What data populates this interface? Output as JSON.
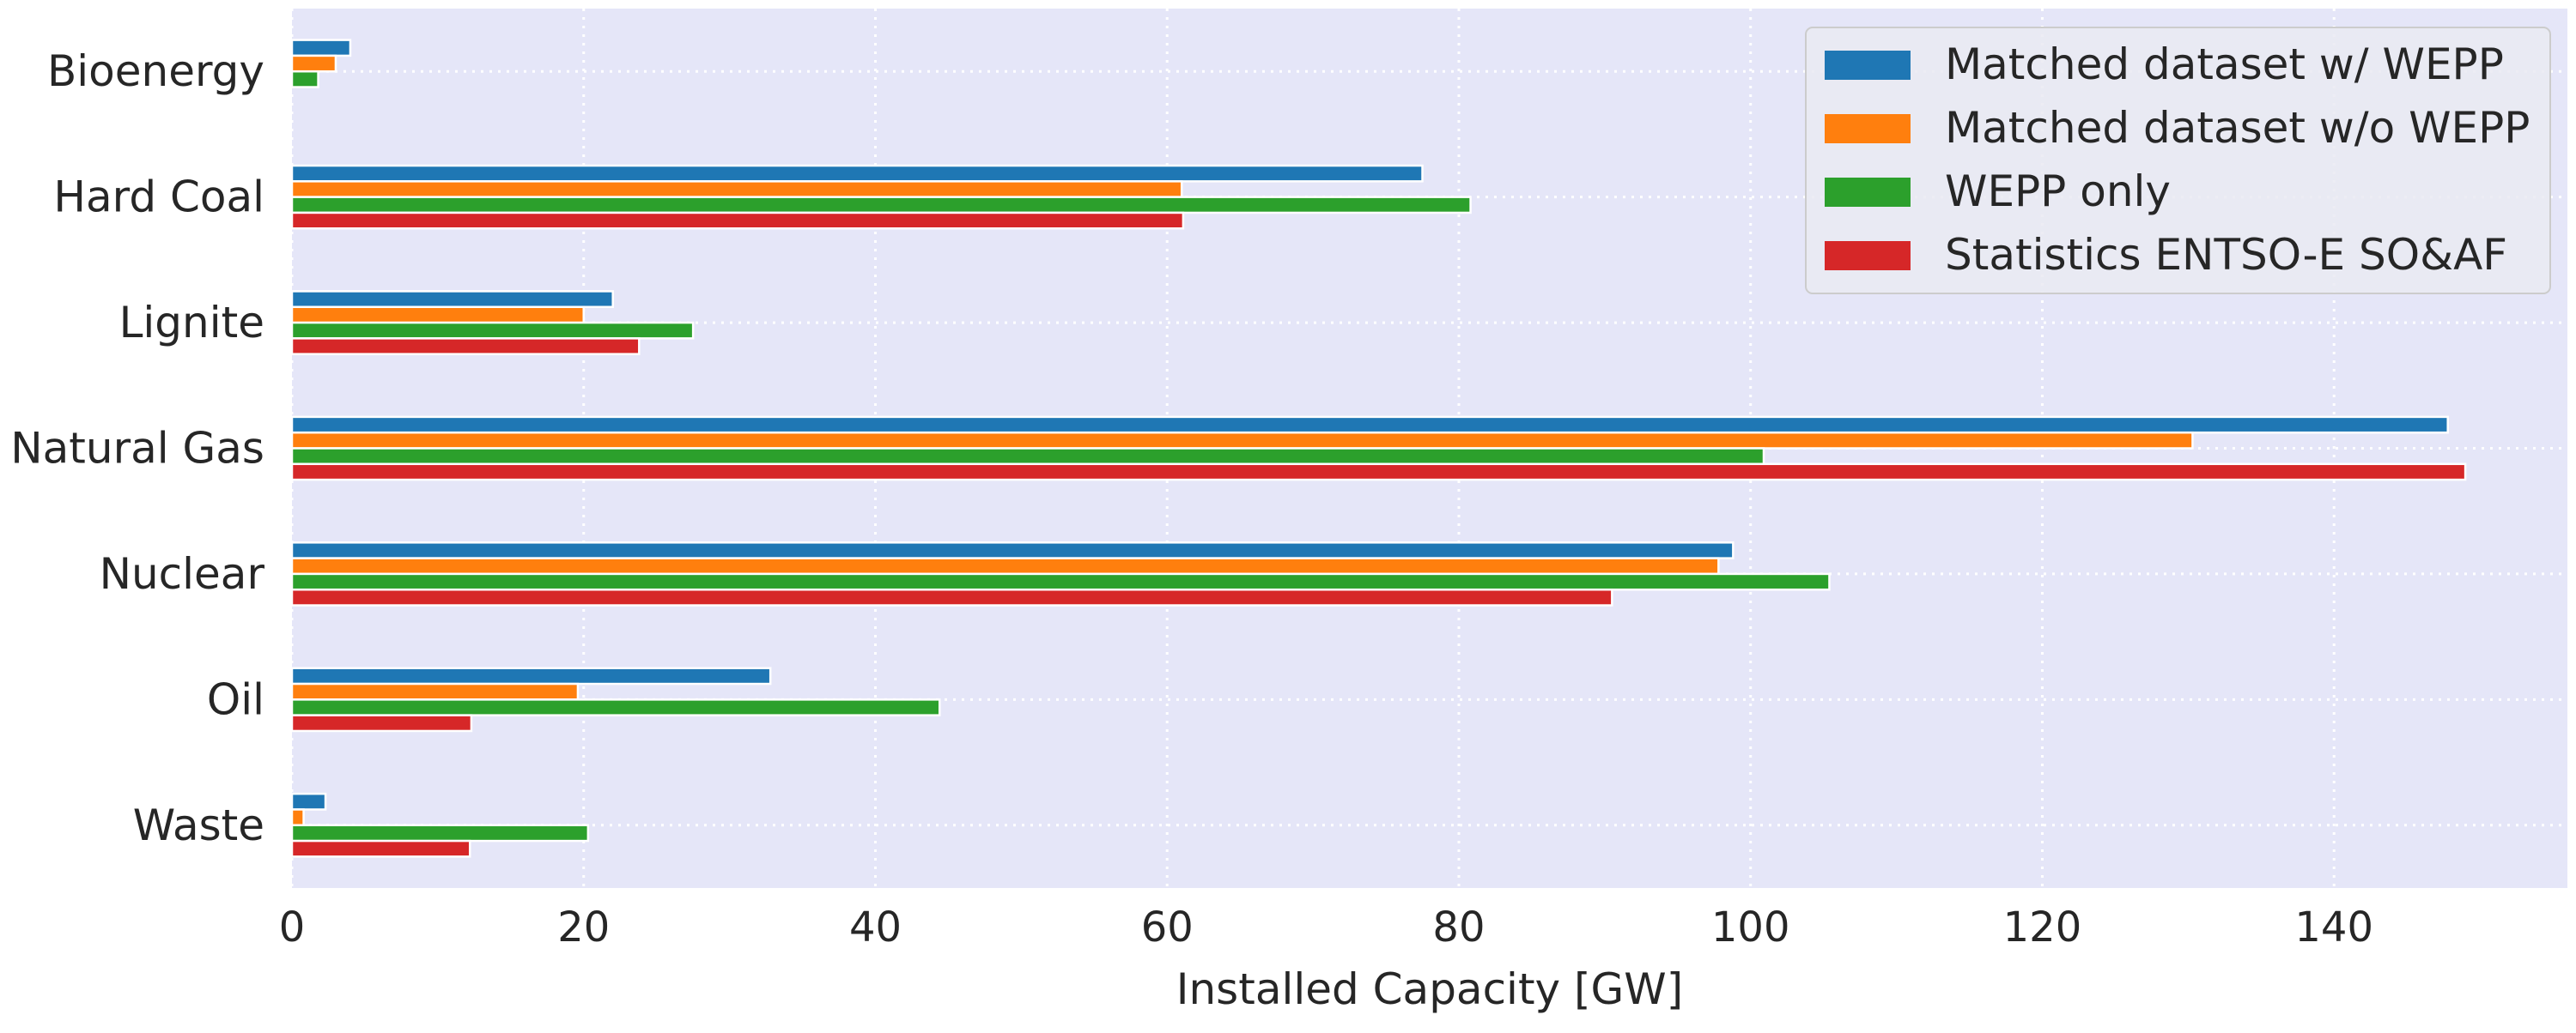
{
  "chart_data": {
    "type": "bar",
    "orientation": "horizontal",
    "title": "",
    "xlabel": "Installed Capacity [GW]",
    "ylabel": "",
    "xlim": [
      0,
      156
    ],
    "xticks": [
      0,
      20,
      40,
      60,
      80,
      100,
      120,
      140
    ],
    "grid": true,
    "legend_position": "top-right",
    "categories": [
      "Bioenergy",
      "Hard Coal",
      "Lignite",
      "Natural Gas",
      "Nuclear",
      "Oil",
      "Waste"
    ],
    "series": [
      {
        "name": "Matched dataset w/ WEPP",
        "color": "#1f77b4",
        "values": [
          4.0,
          77.5,
          22.0,
          147.8,
          98.8,
          32.8,
          2.3
        ]
      },
      {
        "name": "Matched dataset w/o WEPP",
        "color": "#ff7f0e",
        "values": [
          3.0,
          61.0,
          20.0,
          130.3,
          97.8,
          19.6,
          0.8
        ]
      },
      {
        "name": "WEPP only",
        "color": "#2ca02c",
        "values": [
          1.8,
          80.8,
          27.5,
          100.9,
          105.4,
          44.4,
          20.3
        ]
      },
      {
        "name": "Statistics ENTSO-E SO&AF",
        "color": "#d62728",
        "values": [
          0,
          61.1,
          23.8,
          149.0,
          90.5,
          12.3,
          12.2
        ]
      }
    ],
    "plot_background": "#e5e6f8"
  }
}
